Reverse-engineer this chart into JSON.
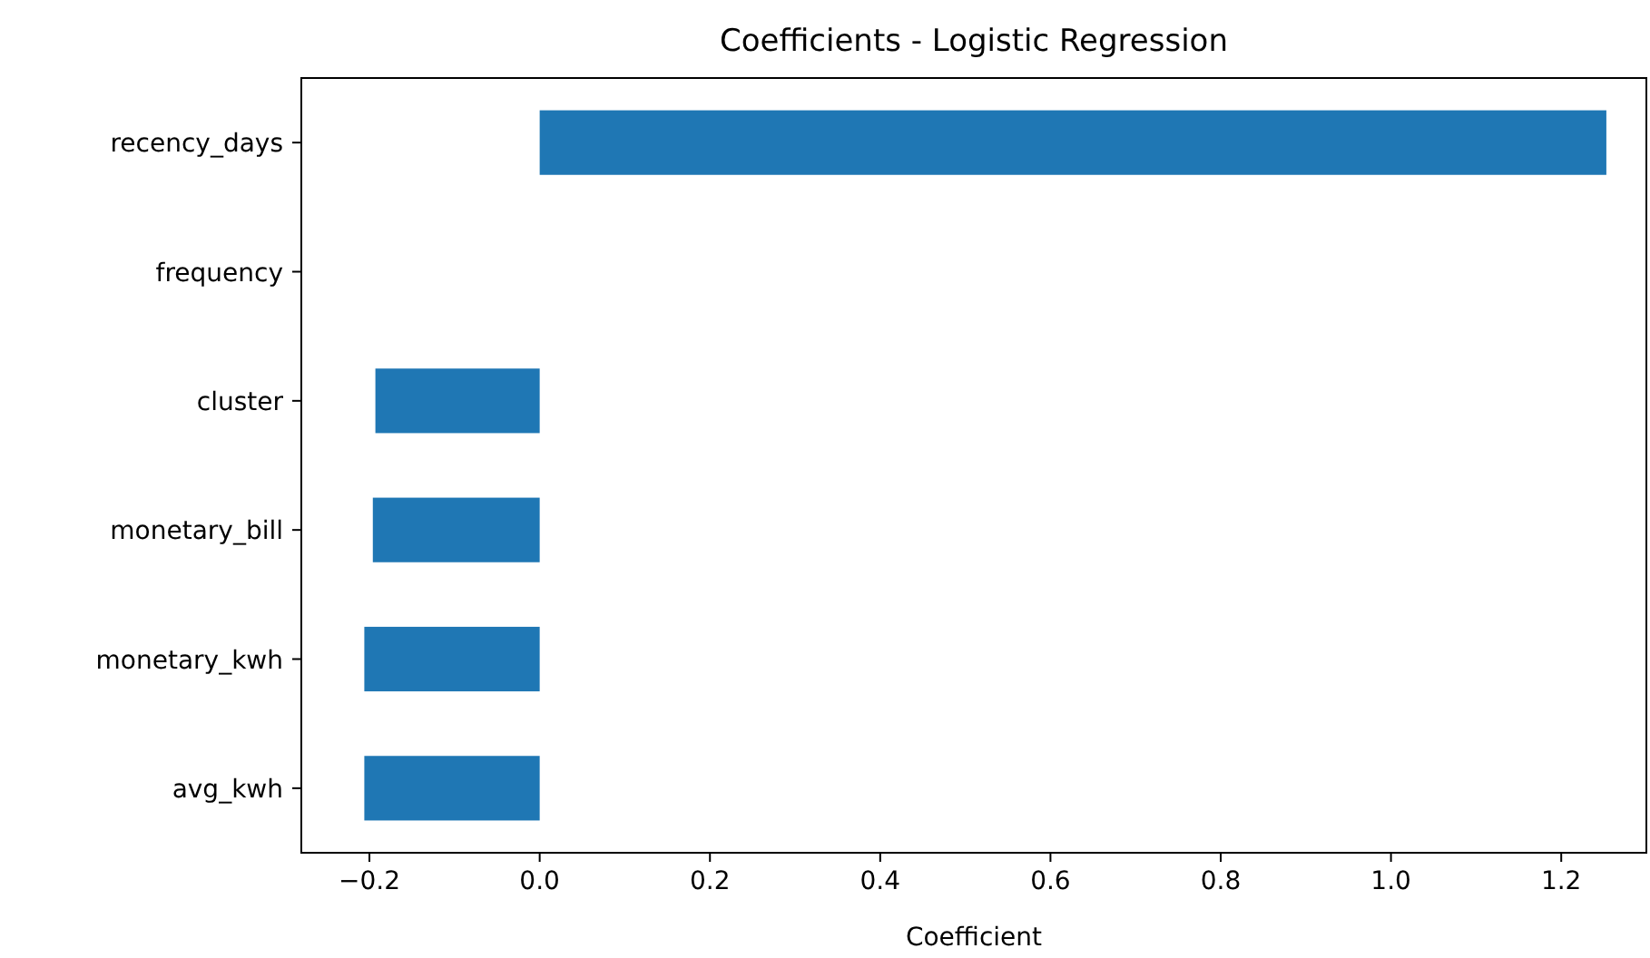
{
  "chart_data": {
    "type": "bar",
    "orientation": "horizontal",
    "title": "Coefficients - Logistic Regression",
    "xlabel": "Coefficient",
    "categories": [
      "recency_days",
      "frequency",
      "cluster",
      "monetary_bill",
      "monetary_kwh",
      "avg_kwh"
    ],
    "values": [
      1.253,
      0,
      -0.193,
      -0.196,
      -0.206,
      -0.206
    ],
    "color": "#1f77b4",
    "xlim": [
      -0.28,
      1.3
    ],
    "xticks": [
      {
        "value": -0.2,
        "label": "−0.2"
      },
      {
        "value": 0,
        "label": "0.0"
      },
      {
        "value": 0.2,
        "label": "0.2"
      },
      {
        "value": 0.4,
        "label": "0.4"
      },
      {
        "value": 0.6,
        "label": "0.6"
      },
      {
        "value": 0.8,
        "label": "0.8"
      },
      {
        "value": 1,
        "label": "1.0"
      },
      {
        "value": 1.2,
        "label": "1.2"
      }
    ]
  }
}
